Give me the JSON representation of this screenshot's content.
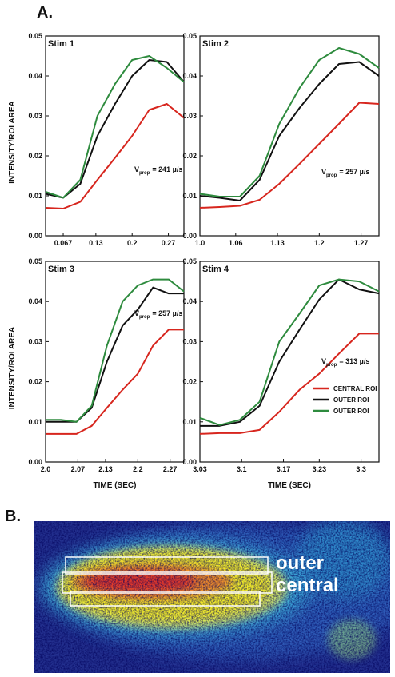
{
  "panel_labels": [
    "A.",
    "B."
  ],
  "image": {
    "labels": [
      "outer",
      "central"
    ]
  },
  "chart_data": [
    {
      "type": "line",
      "title": "Stim 1",
      "y_label": "INTENSITY/ROI AREA",
      "annotation": {
        "symbol": "V",
        "subscript": "prop",
        "text": "= 241 µ/s"
      },
      "x": [
        0.033,
        0.067,
        0.1,
        0.133,
        0.167,
        0.2,
        0.233,
        0.267,
        0.3
      ],
      "series": [
        {
          "color": "#d7261e",
          "values": [
            0.007,
            0.0068,
            0.0085,
            0.014,
            0.0195,
            0.025,
            0.0315,
            0.033,
            0.0295
          ]
        },
        {
          "color": "#111111",
          "values": [
            0.0105,
            0.0095,
            0.013,
            0.025,
            0.033,
            0.04,
            0.044,
            0.0435,
            0.0385
          ]
        },
        {
          "color": "#2e8b3e",
          "values": [
            0.011,
            0.0095,
            0.014,
            0.03,
            0.038,
            0.044,
            0.045,
            0.042,
            0.0385
          ]
        }
      ],
      "xlim": [
        0.033,
        0.3
      ],
      "xticks": [
        0.067,
        0.13,
        0.2,
        0.27
      ],
      "ylim": [
        0,
        0.05
      ],
      "yticks": [
        {
          "value": 0,
          "label": "0.00"
        },
        0.01,
        0.02,
        0.03,
        0.04,
        0.05
      ]
    },
    {
      "type": "line",
      "title": "Stim 2",
      "annotation": {
        "symbol": "V",
        "subscript": "prop",
        "text": "= 257 µ/s"
      },
      "x": [
        1.0,
        1.033,
        1.067,
        1.1,
        1.133,
        1.167,
        1.2,
        1.233,
        1.267,
        1.3
      ],
      "series": [
        {
          "color": "#d7261e",
          "values": [
            0.007,
            0.0072,
            0.0075,
            0.009,
            0.013,
            0.018,
            0.023,
            0.028,
            0.0333,
            0.033
          ]
        },
        {
          "color": "#111111",
          "values": [
            0.01,
            0.0095,
            0.0088,
            0.014,
            0.025,
            0.032,
            0.038,
            0.043,
            0.0435,
            0.04
          ]
        },
        {
          "color": "#2e8b3e",
          "values": [
            0.0105,
            0.0098,
            0.0098,
            0.015,
            0.028,
            0.037,
            0.044,
            0.047,
            0.0455,
            0.042
          ]
        }
      ],
      "xlim": [
        1.0,
        1.3
      ],
      "xticks": [
        {
          "value": 1,
          "label": "1.0"
        },
        1.06,
        1.13,
        1.2,
        1.27
      ],
      "ylim": [
        0,
        0.05
      ],
      "yticks": [
        {
          "value": 0,
          "label": "0.00"
        },
        0.01,
        0.02,
        0.03,
        0.04,
        0.05
      ]
    },
    {
      "type": "line",
      "title": "Stim 3",
      "y_label": "INTENSITY/ROI AREA",
      "x_label": "TIME (SEC)",
      "annotation": {
        "symbol": "V",
        "subscript": "prop",
        "text": "= 257 µ/s"
      },
      "x": [
        2.0,
        2.033,
        2.067,
        2.1,
        2.133,
        2.167,
        2.2,
        2.233,
        2.267,
        2.3
      ],
      "series": [
        {
          "color": "#d7261e",
          "values": [
            0.007,
            0.007,
            0.007,
            0.009,
            0.0135,
            0.018,
            0.022,
            0.029,
            0.033,
            0.033
          ]
        },
        {
          "color": "#111111",
          "values": [
            0.01,
            0.01,
            0.01,
            0.0135,
            0.025,
            0.034,
            0.038,
            0.0435,
            0.042,
            0.042
          ]
        },
        {
          "color": "#2e8b3e",
          "values": [
            0.0105,
            0.0105,
            0.01,
            0.014,
            0.029,
            0.04,
            0.044,
            0.0455,
            0.0455,
            0.0425
          ]
        }
      ],
      "xlim": [
        2.0,
        2.3
      ],
      "xticks": [
        {
          "value": 2,
          "label": "2.0"
        },
        2.07,
        2.13,
        2.2,
        2.27
      ],
      "ylim": [
        0,
        0.05
      ],
      "yticks": [
        {
          "value": 0,
          "label": "0.00"
        },
        0.01,
        0.02,
        0.03,
        0.04,
        0.05
      ]
    },
    {
      "type": "line",
      "title": "Stim 4",
      "x_label": "TIME (SEC)",
      "legend": "lower right",
      "annotation": {
        "symbol": "V",
        "subscript": "prop",
        "text": "= 313 µ/s"
      },
      "x": [
        3.03,
        3.063,
        3.097,
        3.13,
        3.163,
        3.197,
        3.23,
        3.263,
        3.297,
        3.33
      ],
      "series": [
        {
          "name": "CENTRAL ROI",
          "color": "#d7261e",
          "values": [
            0.007,
            0.0072,
            0.0072,
            0.008,
            0.0125,
            0.018,
            0.022,
            0.027,
            0.032,
            0.032
          ]
        },
        {
          "name": "OUTER ROI",
          "color": "#111111",
          "values": [
            0.009,
            0.009,
            0.01,
            0.014,
            0.025,
            0.033,
            0.0405,
            0.0455,
            0.043,
            0.042
          ]
        },
        {
          "name": "OUTER ROI",
          "color": "#2e8b3e",
          "values": [
            0.011,
            0.0092,
            0.0105,
            0.015,
            0.03,
            0.037,
            0.044,
            0.0455,
            0.045,
            0.0425
          ]
        }
      ],
      "xlim": [
        3.03,
        3.33
      ],
      "xticks": [
        3.03,
        3.1,
        3.17,
        3.23,
        3.3
      ],
      "ylim": [
        0,
        0.05
      ],
      "yticks": [
        {
          "value": 0,
          "label": "0.00"
        },
        0.01,
        0.02,
        0.03,
        0.04,
        0.05
      ]
    }
  ]
}
